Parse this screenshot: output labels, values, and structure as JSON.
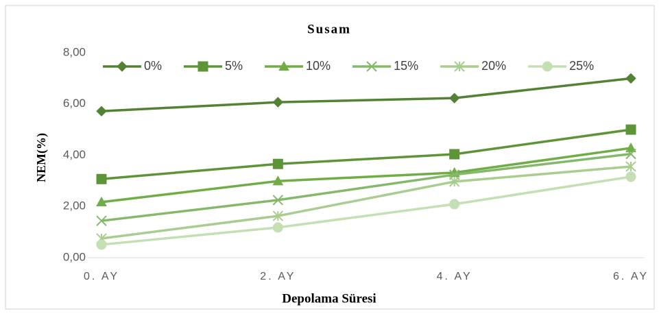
{
  "chart_data": {
    "type": "line",
    "title": "Susam",
    "x_label": "Depolama Süresi",
    "y_label": "NEM(%)",
    "categories": [
      "0. AY",
      "2. AY",
      "4. AY",
      "6. AY"
    ],
    "ylim": [
      0,
      8
    ],
    "yticks": [
      {
        "value": 0,
        "label": "0,00"
      },
      {
        "value": 2,
        "label": "2,00"
      },
      {
        "value": 4,
        "label": "4,00"
      },
      {
        "value": 6,
        "label": "6,00"
      },
      {
        "value": 8,
        "label": "8,00"
      }
    ],
    "grid": false,
    "legend": "top",
    "series": [
      {
        "name": "0%",
        "color": "#548235",
        "marker": "diamond",
        "values": [
          5.72,
          6.07,
          6.23,
          7.0
        ]
      },
      {
        "name": "5%",
        "color": "#5e9438",
        "marker": "square",
        "values": [
          3.07,
          3.66,
          4.04,
          5.0
        ]
      },
      {
        "name": "10%",
        "color": "#70ad47",
        "marker": "triangle",
        "values": [
          2.17,
          2.99,
          3.32,
          4.28
        ]
      },
      {
        "name": "15%",
        "color": "#86b86a",
        "marker": "x",
        "values": [
          1.44,
          2.25,
          3.24,
          4.05
        ]
      },
      {
        "name": "20%",
        "color": "#a9cc8f",
        "marker": "star",
        "values": [
          0.75,
          1.63,
          2.97,
          3.56
        ]
      },
      {
        "name": "25%",
        "color": "#c5dfb4",
        "marker": "circle",
        "values": [
          0.51,
          1.18,
          2.09,
          3.16
        ]
      }
    ]
  }
}
